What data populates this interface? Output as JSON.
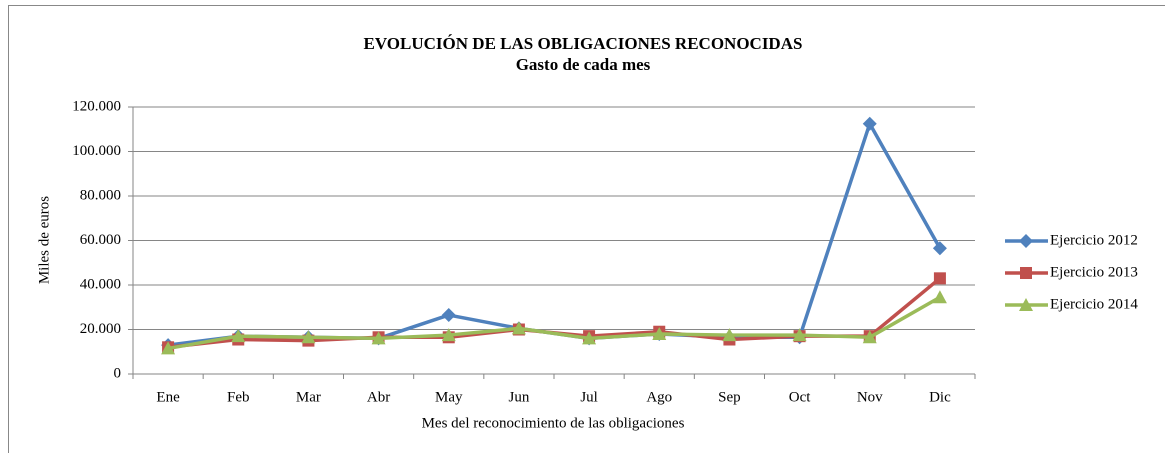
{
  "chart_data": {
    "type": "line",
    "title": "EVOLUCIÓN DE LAS OBLIGACIONES RECONOCIDAS",
    "subtitle": "Gasto de cada mes",
    "x_label": "Mes del reconocimiento de las obligaciones",
    "y_label": "Miles de euros",
    "categories": [
      "Ene",
      "Feb",
      "Mar",
      "Abr",
      "May",
      "Jun",
      "Jul",
      "Ago",
      "Sep",
      "Oct",
      "Nov",
      "Dic"
    ],
    "series": [
      {
        "name": "Ejercicio 2012",
        "color": "#4f81bd",
        "marker": "diamond",
        "values": [
          13000,
          17000,
          16500,
          16000,
          26500,
          20500,
          16000,
          18000,
          16500,
          16500,
          112500,
          56500
        ]
      },
      {
        "name": "Ejercicio 2013",
        "color": "#c0504d",
        "marker": "square",
        "values": [
          12000,
          15500,
          15000,
          16500,
          16500,
          20000,
          17000,
          19000,
          15500,
          17000,
          17000,
          43000
        ]
      },
      {
        "name": "Ejercicio 2014",
        "color": "#9bbb59",
        "marker": "triangle",
        "values": [
          11500,
          17000,
          16500,
          16000,
          17500,
          20500,
          16000,
          18000,
          17500,
          17500,
          16500,
          34500
        ]
      }
    ],
    "ylim": [
      0,
      120000
    ],
    "yticks": [
      0,
      {
        "value": 20000,
        "label": "20.000"
      },
      {
        "value": 40000,
        "label": "40.000"
      },
      {
        "value": 60000,
        "label": "60.000"
      },
      {
        "value": 80000,
        "label": "80.000"
      },
      {
        "value": 100000,
        "label": "100.000"
      },
      {
        "value": 120000,
        "label": "120.000"
      }
    ],
    "grid": true,
    "legend": "right"
  }
}
